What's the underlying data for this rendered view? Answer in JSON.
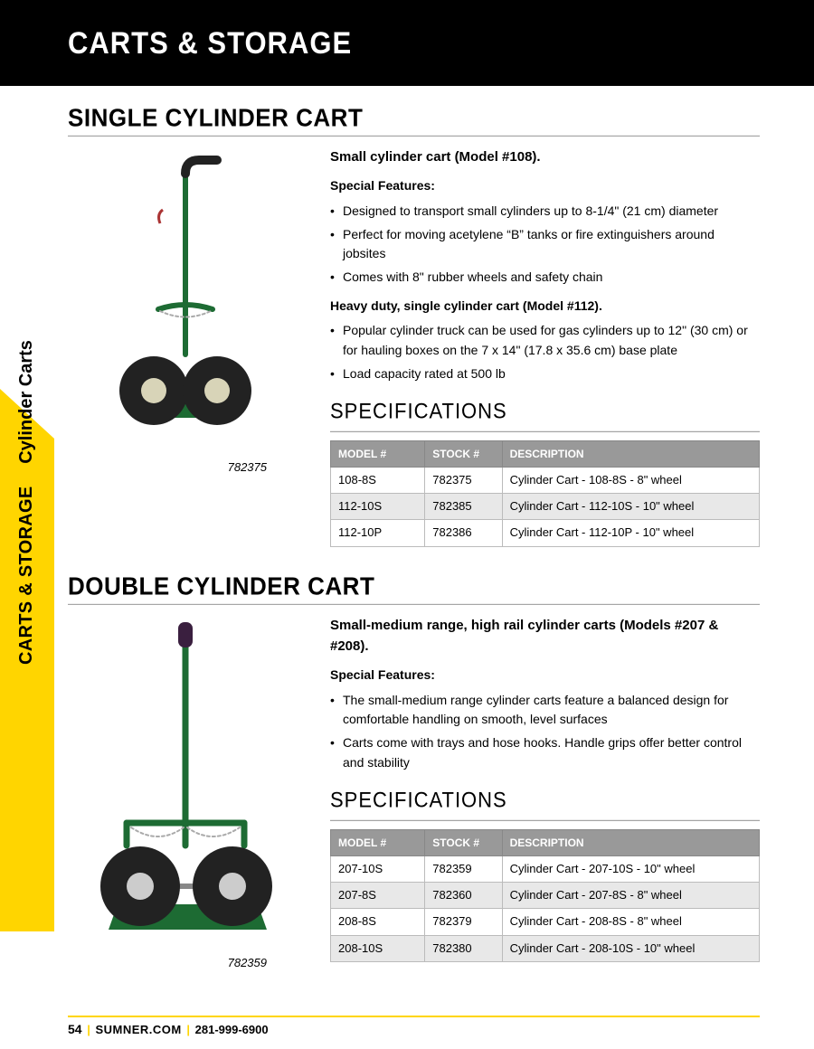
{
  "header": {
    "title": "CARTS & STORAGE"
  },
  "sideTab": {
    "bold": "CARTS & STORAGE",
    "sep": "|",
    "regular": "Cylinder Carts"
  },
  "sec1": {
    "title": "SINGLE CYLINDER CART",
    "imgCaption": "782375",
    "sub1": "Small cylinder cart (Model #108).",
    "featLabel": "Special Features:",
    "feat1": [
      "Designed to transport small cylinders up to 8-1/4\" (21 cm) diameter",
      "Perfect for moving acetylene “B” tanks or fire extinguishers around jobsites",
      "Comes with 8\" rubber wheels and safety chain"
    ],
    "sub2": "Heavy duty, single cylinder cart (Model #112).",
    "feat2": [
      "Popular cylinder truck can be used for gas cylinders up to 12\" (30 cm) or for hauling boxes on the 7 x 14\" (17.8 x 35.6 cm) base plate",
      "Load capacity rated at 500 lb"
    ],
    "specTitle": "SPECIFICATIONS",
    "cols": [
      "MODEL #",
      "STOCK #",
      "DESCRIPTION"
    ],
    "rows": [
      [
        "108-8S",
        "782375",
        "Cylinder Cart - 108-8S - 8\" wheel"
      ],
      [
        "112-10S",
        "782385",
        "Cylinder Cart - 112-10S - 10\" wheel"
      ],
      [
        "112-10P",
        "782386",
        "Cylinder Cart - 112-10P - 10\" wheel"
      ]
    ],
    "colW": [
      "22%",
      "18%",
      "60%"
    ]
  },
  "sec2": {
    "title": "DOUBLE CYLINDER CART",
    "imgCaption": "782359",
    "sub1": "Small-medium range, high rail cylinder carts (Models #207 & #208).",
    "featLabel": "Special Features:",
    "feat1": [
      "The small-medium range cylinder carts feature a balanced design for comfortable handling on smooth, level surfaces",
      "Carts come with trays and hose hooks. Handle grips offer better control and stability"
    ],
    "specTitle": "SPECIFICATIONS",
    "cols": [
      "MODEL #",
      "STOCK #",
      "DESCRIPTION"
    ],
    "rows": [
      [
        "207-10S",
        "782359",
        "Cylinder Cart - 207-10S - 10\" wheel"
      ],
      [
        "207-8S",
        "782360",
        "Cylinder Cart - 207-8S - 8\" wheel"
      ],
      [
        "208-8S",
        "782379",
        "Cylinder Cart - 208-8S - 8\" wheel"
      ],
      [
        "208-10S",
        "782380",
        "Cylinder Cart - 208-10S - 10\" wheel"
      ]
    ],
    "colW": [
      "22%",
      "18%",
      "60%"
    ]
  },
  "footer": {
    "page": "54",
    "site": "SUMNER.COM",
    "phone": "281-999-6900"
  },
  "colors": {
    "green": "#1d6b33",
    "yellow": "#ffd500",
    "headerBg": "#000",
    "thBg": "#999999"
  }
}
